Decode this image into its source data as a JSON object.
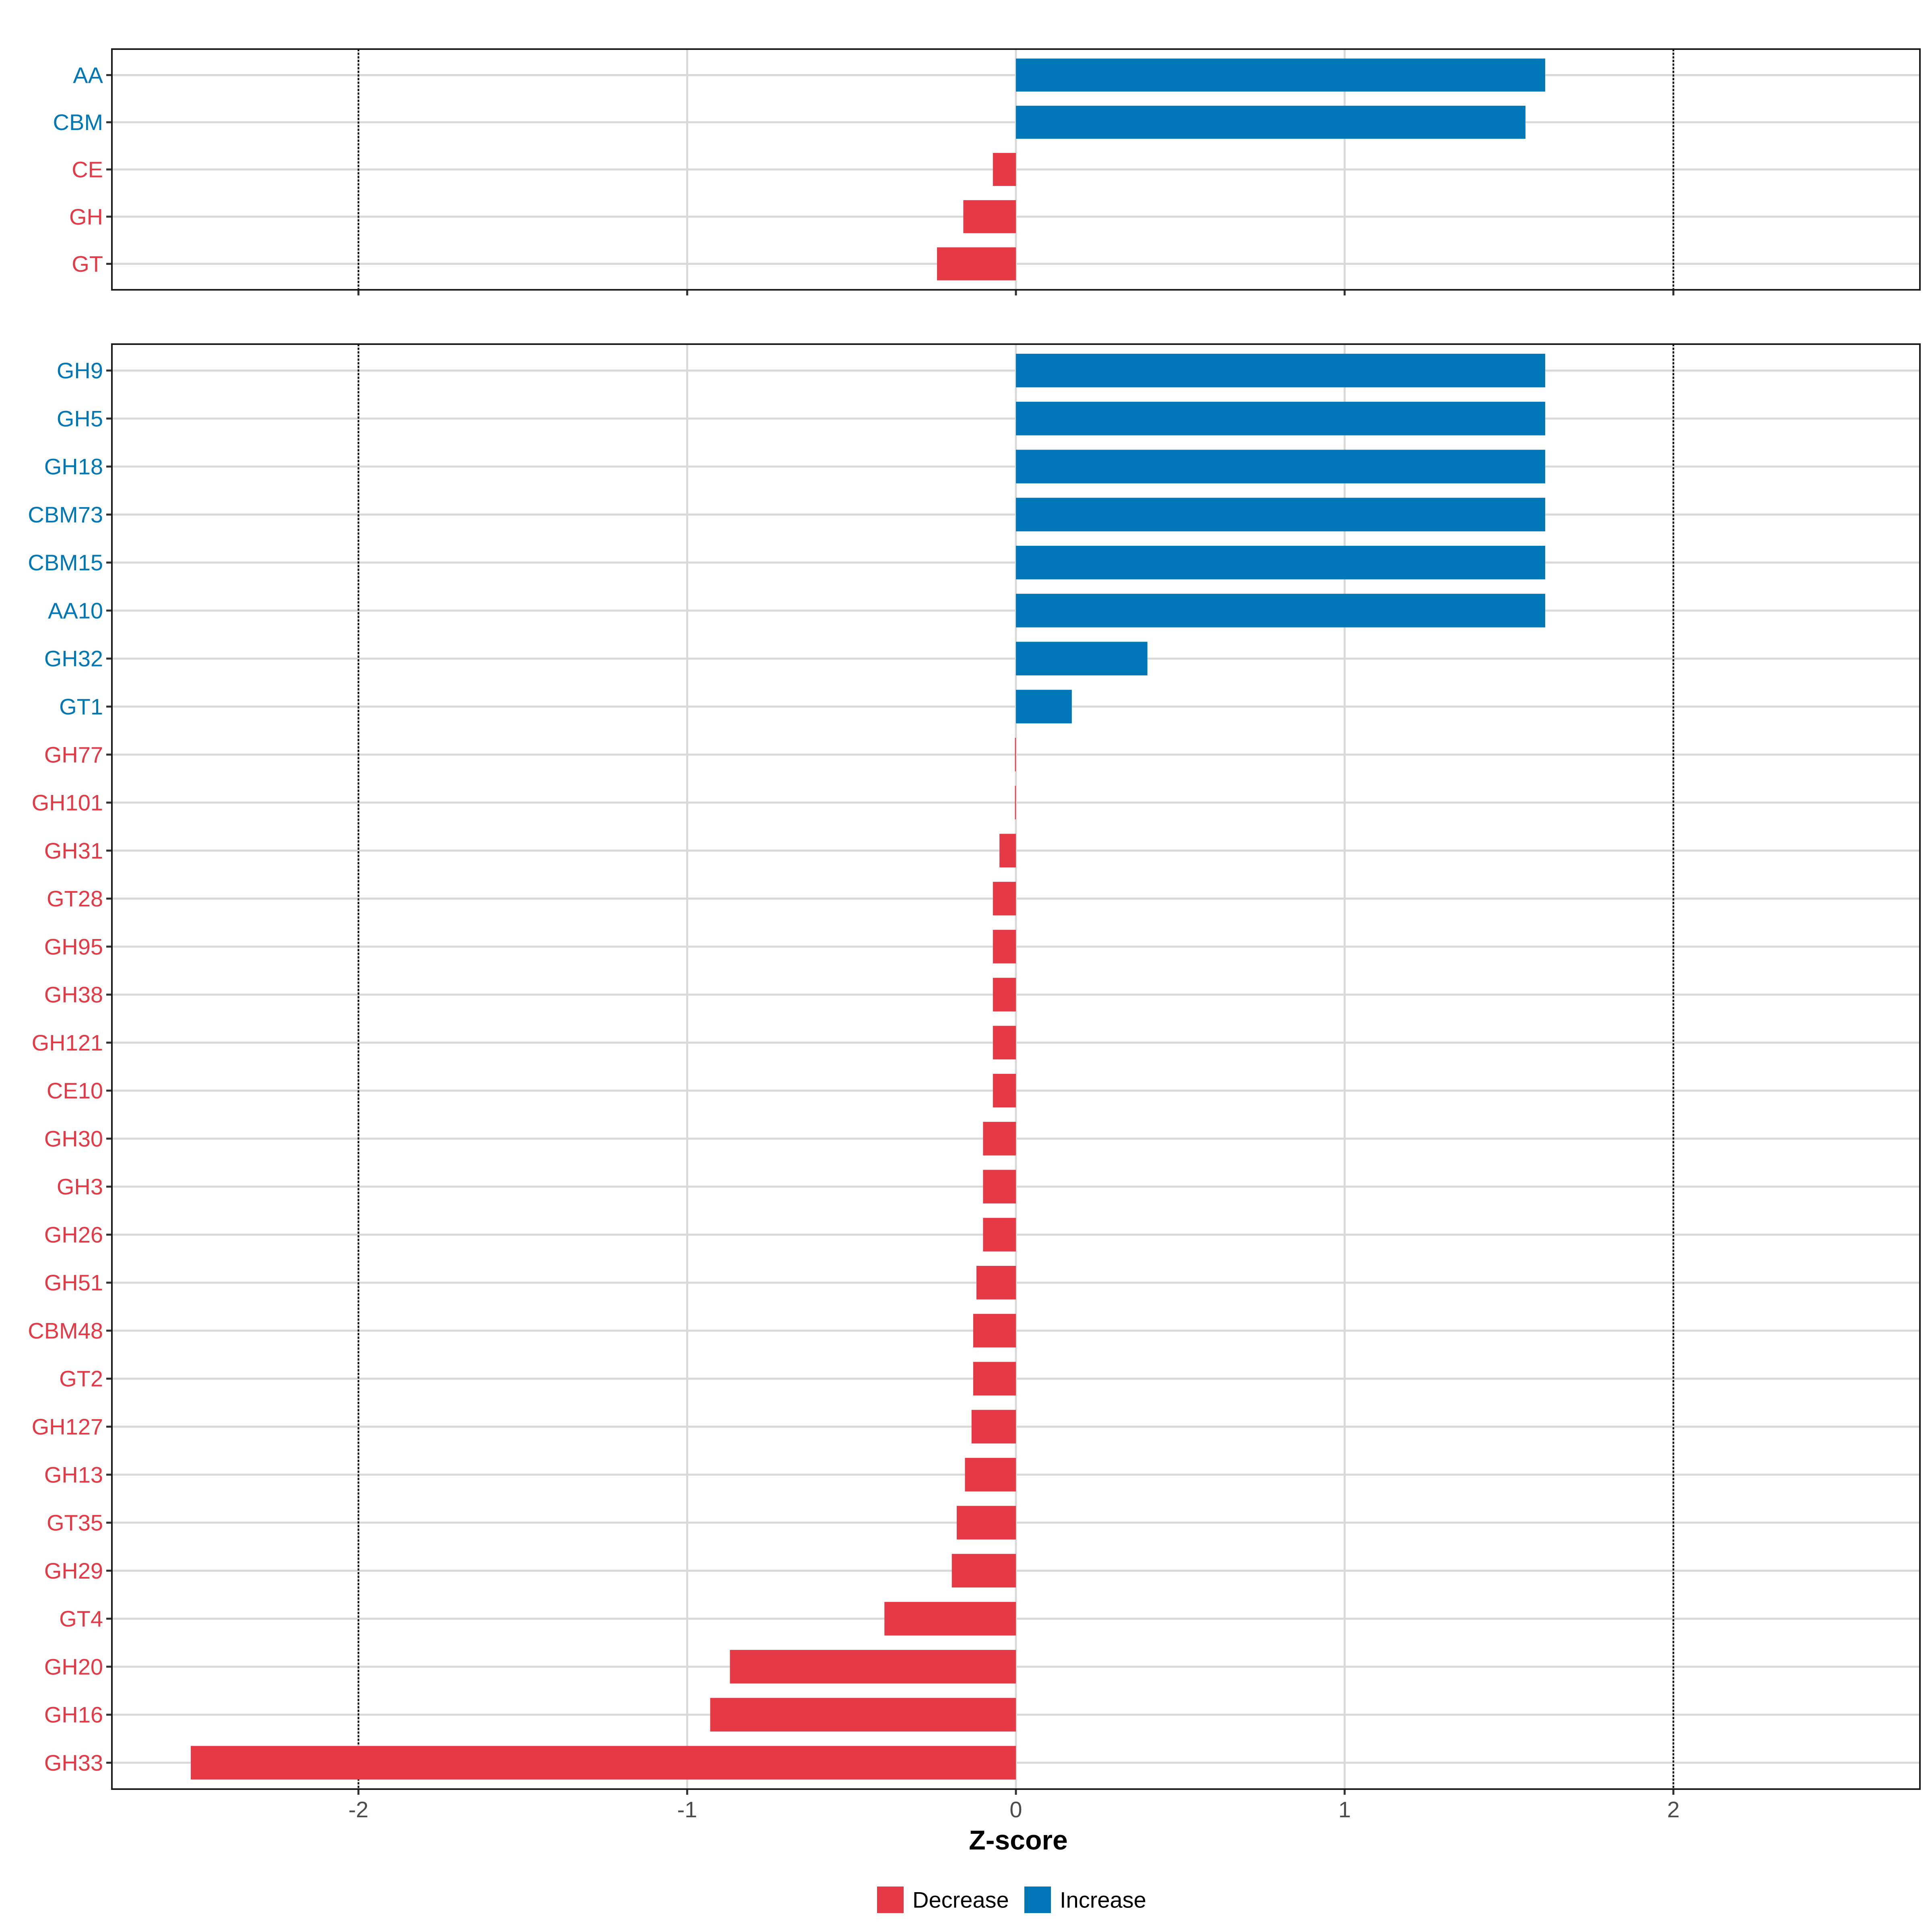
{
  "chart_data": [
    {
      "type": "bar",
      "orientation": "horizontal",
      "panel": "top",
      "categories": [
        "AA",
        "CBM",
        "CE",
        "GH",
        "GT"
      ],
      "values": [
        1.61,
        1.55,
        -0.07,
        -0.16,
        -0.24
      ],
      "directions": [
        "Increase",
        "Increase",
        "Decrease",
        "Decrease",
        "Decrease"
      ],
      "xlim": [
        -2.75,
        2.75
      ],
      "reference_lines": [
        -2,
        2
      ]
    },
    {
      "type": "bar",
      "orientation": "horizontal",
      "panel": "bottom",
      "categories": [
        "GH9",
        "GH5",
        "GH18",
        "CBM73",
        "CBM15",
        "AA10",
        "GH32",
        "GT1",
        "GH77",
        "GH101",
        "GH31",
        "GT28",
        "GH95",
        "GH38",
        "GH121",
        "CE10",
        "GH30",
        "GH3",
        "GH26",
        "GH51",
        "CBM48",
        "GT2",
        "GH127",
        "GH13",
        "GT35",
        "GH29",
        "GT4",
        "GH20",
        "GH16",
        "GH33"
      ],
      "values": [
        1.61,
        1.61,
        1.61,
        1.61,
        1.61,
        1.61,
        0.4,
        0.17,
        -0.003,
        -0.003,
        -0.05,
        -0.07,
        -0.07,
        -0.07,
        -0.07,
        -0.07,
        -0.1,
        -0.1,
        -0.1,
        -0.12,
        -0.13,
        -0.13,
        -0.135,
        -0.155,
        -0.18,
        -0.195,
        -0.4,
        -0.87,
        -0.93,
        -2.51
      ],
      "directions": [
        "Increase",
        "Increase",
        "Increase",
        "Increase",
        "Increase",
        "Increase",
        "Increase",
        "Increase",
        "Decrease",
        "Decrease",
        "Decrease",
        "Decrease",
        "Decrease",
        "Decrease",
        "Decrease",
        "Decrease",
        "Decrease",
        "Decrease",
        "Decrease",
        "Decrease",
        "Decrease",
        "Decrease",
        "Decrease",
        "Decrease",
        "Decrease",
        "Decrease",
        "Decrease",
        "Decrease",
        "Decrease",
        "Decrease"
      ],
      "xlim": [
        -2.75,
        2.75
      ],
      "reference_lines": [
        -2,
        2
      ]
    }
  ],
  "axis": {
    "xlabel": "Z-score",
    "ticks": [
      -2,
      -1,
      0,
      1,
      2
    ],
    "tick_labels": [
      "-2",
      "-1",
      "0",
      "1",
      "2"
    ]
  },
  "legend": {
    "position": "bottom",
    "items": [
      {
        "label": "Decrease",
        "color": "#E63946"
      },
      {
        "label": "Increase",
        "color": "#0077B6"
      }
    ]
  },
  "colors": {
    "Decrease": "#E63946",
    "Increase": "#0077B6",
    "grid": "#D9D9D9",
    "reference": "#000000",
    "axis_text": "#4D4D4D"
  }
}
